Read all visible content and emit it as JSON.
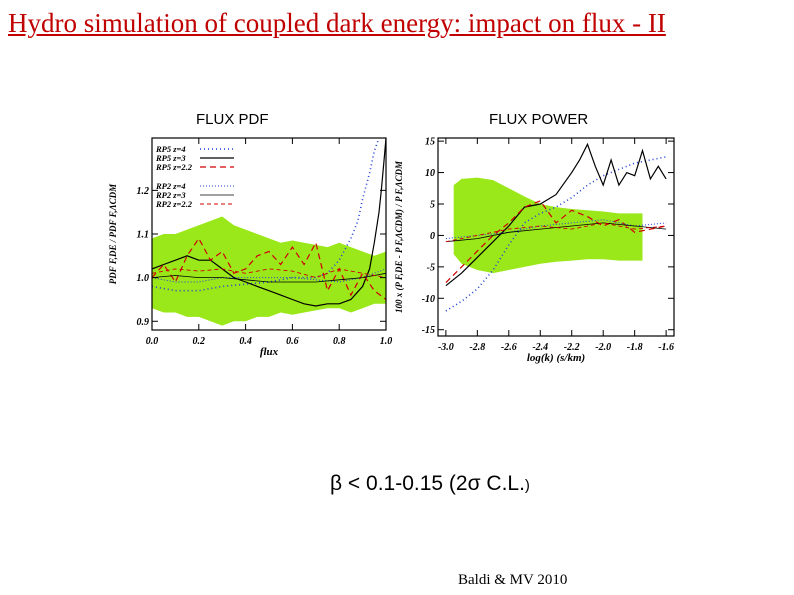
{
  "slide": {
    "title": "Hydro simulation of coupled dark energy: impact on flux - II",
    "title_color": "#c00000",
    "panel_label_left": "FLUX  PDF",
    "panel_label_right": "FLUX POWER",
    "constraint_beta": "β",
    "constraint_main": " < 0.1-0.15  (2",
    "constraint_sigma": "σ",
    "constraint_cl": " C.L.",
    "constraint_close": ")",
    "credit": "Baldi & MV 2010"
  },
  "colors": {
    "band": "#9be81a",
    "blue": "#1f3fd8",
    "black": "#000000",
    "red": "#d00000"
  },
  "chart_data": [
    {
      "type": "line",
      "xlabel": "flux",
      "ylabel": "PDF F,DE / PDF F,ΛCDM",
      "xlim": [
        0.0,
        1.0
      ],
      "ylim": [
        0.88,
        1.32
      ],
      "xticks": [
        "0.0",
        "0.2",
        "0.4",
        "0.6",
        "0.8",
        "1.0"
      ],
      "yticks": [
        "0.9",
        "1.0",
        "1.1",
        "1.2"
      ],
      "legend_position": "top-left",
      "legend": [
        "RP5 z=4",
        "RP5 z=3",
        "RP5 z=2.2",
        "RP2 z=4",
        "RP2 z=3",
        "RP2 z=2.2"
      ],
      "band": {
        "x": [
          0.0,
          0.05,
          0.1,
          0.15,
          0.2,
          0.25,
          0.3,
          0.35,
          0.4,
          0.45,
          0.5,
          0.55,
          0.6,
          0.65,
          0.7,
          0.75,
          0.8,
          0.85,
          0.9,
          0.95,
          1.0
        ],
        "upper": [
          1.09,
          1.1,
          1.1,
          1.11,
          1.12,
          1.13,
          1.14,
          1.12,
          1.11,
          1.1,
          1.09,
          1.08,
          1.085,
          1.08,
          1.075,
          1.07,
          1.08,
          1.07,
          1.06,
          1.05,
          1.06
        ],
        "lower": [
          0.93,
          0.92,
          0.92,
          0.91,
          0.91,
          0.9,
          0.89,
          0.9,
          0.9,
          0.91,
          0.91,
          0.92,
          0.915,
          0.92,
          0.925,
          0.93,
          0.93,
          0.92,
          0.93,
          0.94,
          0.94
        ]
      },
      "series": [
        {
          "name": "RP5 z=4",
          "color": "blue",
          "dash": "1,3",
          "width": 1.6,
          "x": [
            0.0,
            0.1,
            0.2,
            0.3,
            0.4,
            0.5,
            0.6,
            0.7,
            0.75,
            0.8,
            0.85,
            0.88,
            0.9,
            0.93,
            0.95,
            0.97
          ],
          "y": [
            0.98,
            0.97,
            0.97,
            0.98,
            0.985,
            0.99,
            1.0,
            1.0,
            1.01,
            1.04,
            1.09,
            1.13,
            1.18,
            1.24,
            1.29,
            1.32
          ]
        },
        {
          "name": "RP5 z=3",
          "color": "black",
          "dash": "",
          "width": 1.2,
          "x": [
            0.0,
            0.05,
            0.1,
            0.15,
            0.2,
            0.25,
            0.3,
            0.35,
            0.4,
            0.45,
            0.5,
            0.55,
            0.6,
            0.65,
            0.7,
            0.75,
            0.8,
            0.85,
            0.9,
            0.93,
            0.95,
            0.97,
            0.98,
            0.99,
            1.0
          ],
          "y": [
            1.02,
            1.03,
            1.04,
            1.05,
            1.04,
            1.04,
            1.02,
            1.0,
            0.99,
            0.98,
            0.97,
            0.96,
            0.95,
            0.94,
            0.935,
            0.94,
            0.94,
            0.95,
            0.98,
            1.02,
            1.08,
            1.15,
            1.2,
            1.26,
            1.32
          ]
        },
        {
          "name": "RP5 z=2.2",
          "color": "red",
          "dash": "6,4",
          "width": 1.2,
          "x": [
            0.0,
            0.05,
            0.1,
            0.15,
            0.2,
            0.25,
            0.3,
            0.35,
            0.4,
            0.45,
            0.5,
            0.55,
            0.6,
            0.65,
            0.7,
            0.75,
            0.8,
            0.85,
            0.9,
            0.95,
            1.0
          ],
          "y": [
            1.0,
            1.03,
            0.99,
            1.05,
            1.09,
            1.04,
            1.06,
            1.01,
            1.02,
            1.05,
            1.06,
            1.03,
            1.07,
            1.03,
            1.08,
            0.97,
            1.02,
            0.96,
            1.01,
            0.97,
            0.95
          ]
        },
        {
          "name": "RP2 z=4",
          "color": "blue",
          "dash": "1,2",
          "width": 1.0,
          "x": [
            0.0,
            0.1,
            0.2,
            0.3,
            0.4,
            0.5,
            0.6,
            0.7,
            0.8,
            0.9,
            1.0
          ],
          "y": [
            1.0,
            0.99,
            0.99,
            1.0,
            1.0,
            1.0,
            1.0,
            0.995,
            0.99,
            1.0,
            1.02
          ]
        },
        {
          "name": "RP2 z=3",
          "color": "black",
          "dash": "",
          "width": 0.8,
          "x": [
            0.0,
            0.1,
            0.2,
            0.3,
            0.4,
            0.5,
            0.6,
            0.7,
            0.8,
            0.9,
            1.0
          ],
          "y": [
            1.0,
            1.005,
            1.0,
            1.0,
            0.995,
            0.99,
            0.99,
            0.99,
            0.995,
            1.0,
            1.01
          ]
        },
        {
          "name": "RP2 z=2.2",
          "color": "red",
          "dash": "4,3",
          "width": 0.9,
          "x": [
            0.0,
            0.1,
            0.2,
            0.3,
            0.4,
            0.5,
            0.6,
            0.7,
            0.8,
            0.9,
            1.0
          ],
          "y": [
            1.01,
            1.02,
            1.015,
            1.02,
            1.01,
            1.02,
            1.015,
            1.0,
            1.02,
            1.01,
            1.0
          ]
        }
      ]
    },
    {
      "type": "line",
      "xlabel": "log(k) (s/km)",
      "ylabel": "100 x (P F,DE - P F,ΛCDM) / P F,ΛCDM",
      "xlim": [
        -3.05,
        -1.55
      ],
      "ylim": [
        -16,
        15.5
      ],
      "xticks": [
        "-3.0",
        "-2.8",
        "-2.6",
        "-2.4",
        "-2.2",
        "-2.0",
        "-1.8",
        "-1.6"
      ],
      "xtick_values": [
        -3.0,
        -2.8,
        -2.6,
        -2.4,
        -2.2,
        -2.0,
        -1.8,
        -1.6
      ],
      "yticks": [
        "-15",
        "-10",
        "-5",
        "0",
        "5",
        "10",
        "15"
      ],
      "ytick_values": [
        -15,
        -10,
        -5,
        0,
        5,
        10,
        15
      ],
      "band": {
        "x": [
          -2.95,
          -2.9,
          -2.8,
          -2.7,
          -2.6,
          -2.5,
          -2.4,
          -2.3,
          -2.2,
          -2.1,
          -2.0,
          -1.9,
          -1.8,
          -1.75
        ],
        "upper": [
          8.0,
          9.0,
          9.2,
          8.8,
          7.5,
          6.2,
          5.0,
          4.5,
          4.2,
          4.0,
          3.8,
          3.5,
          3.5,
          3.5
        ],
        "lower": [
          -3.0,
          -4.5,
          -5.5,
          -6.0,
          -5.5,
          -5.0,
          -4.5,
          -4.2,
          -4.0,
          -3.8,
          -3.8,
          -4.0,
          -4.0,
          -4.0
        ]
      },
      "series": [
        {
          "name": "RP5 z=4",
          "color": "blue",
          "dash": "1,3",
          "width": 1.6,
          "x": [
            -3.0,
            -2.9,
            -2.8,
            -2.7,
            -2.6,
            -2.5,
            -2.4,
            -2.3,
            -2.2,
            -2.1,
            -2.0,
            -1.9,
            -1.8,
            -1.7,
            -1.6
          ],
          "y": [
            -12.0,
            -10.5,
            -8.5,
            -5.5,
            -1.5,
            2.0,
            3.5,
            4.5,
            6.0,
            8.0,
            9.5,
            10.5,
            11.5,
            12.0,
            12.5
          ]
        },
        {
          "name": "RP5 z=3",
          "color": "black",
          "dash": "",
          "width": 1.2,
          "x": [
            -3.0,
            -2.9,
            -2.8,
            -2.7,
            -2.6,
            -2.5,
            -2.4,
            -2.3,
            -2.2,
            -2.15,
            -2.1,
            -2.05,
            -2.0,
            -1.95,
            -1.9,
            -1.85,
            -1.8,
            -1.75,
            -1.7,
            -1.65,
            -1.6
          ],
          "y": [
            -8.0,
            -6.0,
            -3.5,
            -1.0,
            1.5,
            4.5,
            5.0,
            6.5,
            10.0,
            12.0,
            14.5,
            11.0,
            8.0,
            12.0,
            8.0,
            10.0,
            9.5,
            13.5,
            9.0,
            11.0,
            9.0
          ]
        },
        {
          "name": "RP5 z=2.2",
          "color": "red",
          "dash": "6,4",
          "width": 1.2,
          "x": [
            -3.0,
            -2.9,
            -2.8,
            -2.7,
            -2.6,
            -2.5,
            -2.4,
            -2.3,
            -2.2,
            -2.1,
            -2.0,
            -1.9,
            -1.8,
            -1.7,
            -1.6
          ],
          "y": [
            -7.5,
            -5.0,
            -2.5,
            0.0,
            2.0,
            4.5,
            5.5,
            2.0,
            4.0,
            3.0,
            1.5,
            2.5,
            0.5,
            1.0,
            1.5
          ]
        },
        {
          "name": "RP2 z=4",
          "color": "blue",
          "dash": "1,2",
          "width": 1.0,
          "x": [
            -3.0,
            -2.8,
            -2.6,
            -2.4,
            -2.2,
            -2.0,
            -1.8,
            -1.6
          ],
          "y": [
            -0.5,
            0.0,
            0.5,
            1.5,
            2.0,
            2.5,
            1.5,
            2.0
          ]
        },
        {
          "name": "RP2 z=3",
          "color": "black",
          "dash": "",
          "width": 0.8,
          "x": [
            -3.0,
            -2.8,
            -2.6,
            -2.4,
            -2.2,
            -2.0,
            -1.8,
            -1.6
          ],
          "y": [
            -1.0,
            -0.5,
            0.5,
            1.0,
            1.5,
            2.0,
            1.5,
            1.0
          ]
        },
        {
          "name": "RP2 z=2.2",
          "color": "red",
          "dash": "4,3",
          "width": 0.9,
          "x": [
            -3.0,
            -2.8,
            -2.6,
            -2.4,
            -2.2,
            -2.0,
            -1.8,
            -1.6
          ],
          "y": [
            -1.0,
            0.0,
            1.0,
            1.5,
            1.0,
            2.0,
            1.0,
            1.5
          ]
        }
      ]
    }
  ]
}
